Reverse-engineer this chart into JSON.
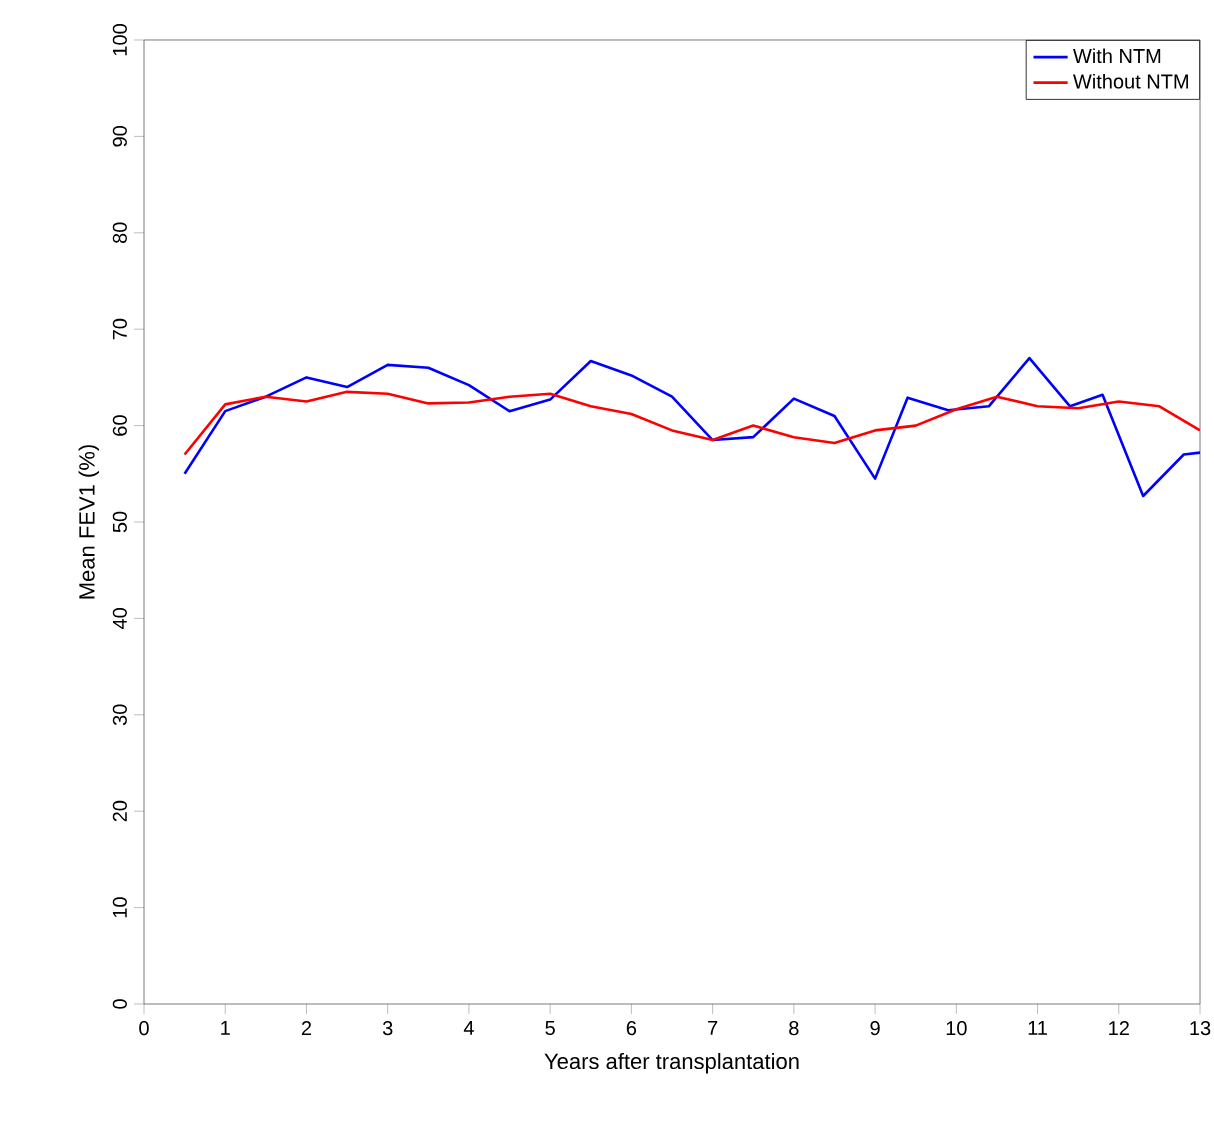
{
  "chart_data": {
    "type": "line",
    "xlabel": "Years after transplantation",
    "ylabel": "Mean FEV1 (%)",
    "xlim": [
      0,
      13
    ],
    "ylim": [
      0,
      100
    ],
    "xticks": [
      0,
      1,
      2,
      3,
      4,
      5,
      6,
      7,
      8,
      9,
      10,
      11,
      12,
      13
    ],
    "yticks": [
      0,
      10,
      20,
      30,
      40,
      50,
      60,
      70,
      80,
      90,
      100
    ],
    "grid": false,
    "legend": "top right",
    "marker": "none",
    "line_style": "solid",
    "series": [
      {
        "name": "With NTM",
        "color": "#0000ff",
        "x": [
          0.5,
          1,
          1.5,
          2,
          2.5,
          3,
          3.5,
          4,
          4.5,
          5,
          5.5,
          6,
          6.5,
          7,
          7.5,
          8,
          8.5,
          9,
          9.4,
          9.9,
          10.4,
          10.9,
          11.4,
          11.8,
          12.3,
          12.8,
          13
        ],
        "values": [
          55,
          61.5,
          63,
          65,
          64,
          66.3,
          66,
          64.2,
          61.5,
          62.7,
          66.7,
          65.2,
          63,
          58.5,
          58.8,
          62.8,
          61,
          54.5,
          62.9,
          61.6,
          62,
          67,
          62,
          63.2,
          52.7,
          57,
          57.2
        ]
      },
      {
        "name": "Without NTM",
        "color": "#ff0000",
        "x": [
          0.5,
          1,
          1.5,
          2,
          2.5,
          3,
          3.5,
          4,
          4.5,
          5,
          5.5,
          6,
          6.5,
          7,
          7.5,
          8,
          8.5,
          9,
          9.5,
          10,
          10.5,
          11,
          11.5,
          12,
          12.5,
          13
        ],
        "values": [
          57,
          62.2,
          63,
          62.5,
          63.5,
          63.3,
          62.3,
          62.4,
          63,
          63.3,
          62,
          61.2,
          59.5,
          58.5,
          60,
          58.8,
          58.2,
          59.5,
          60,
          61.7,
          63,
          62,
          61.8,
          62.5,
          62,
          59.5
        ]
      }
    ]
  }
}
